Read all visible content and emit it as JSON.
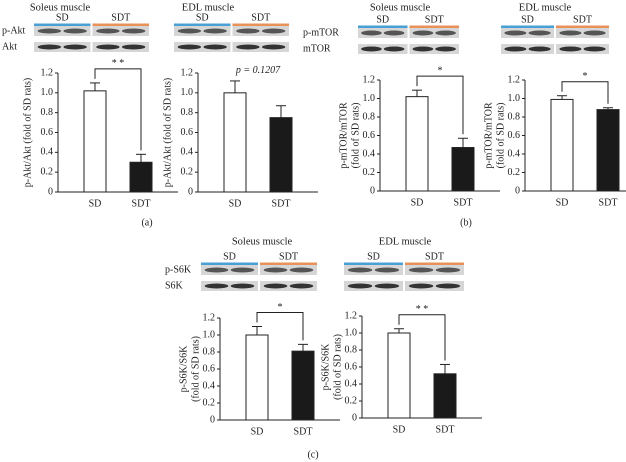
{
  "chart_data": [
    {
      "type": "bar",
      "title": "Soleus muscle",
      "blot_rows": [
        "p-Akt",
        "Akt"
      ],
      "categories": [
        "SD",
        "SDT"
      ],
      "values": [
        1.02,
        0.3
      ],
      "errors": [
        0.08,
        0.08
      ],
      "colors": [
        "#ffffff",
        "#1a1a1a"
      ],
      "ylabel": [
        "p-Akt/Akt (fold of SD rats)"
      ],
      "significance": "*   *",
      "ylim": [
        0,
        1.2
      ],
      "yticks": [
        0,
        0.2,
        0.4,
        0.6,
        0.8,
        {
          "value": 1,
          "label": "1.0"
        },
        1.2
      ]
    },
    {
      "type": "bar",
      "title": "EDL muscle",
      "categories": [
        "SD",
        "SDT"
      ],
      "values": [
        1.0,
        0.75
      ],
      "errors": [
        0.12,
        0.12
      ],
      "colors": [
        "#ffffff",
        "#1a1a1a"
      ],
      "ylabel": [
        "p-Akt/Akt (fold of SD rats)"
      ],
      "annotation": "p = 0.1207",
      "ylim": [
        0,
        1.2
      ],
      "yticks": [
        0,
        0.2,
        0.4,
        0.6,
        0.8,
        {
          "value": 1,
          "label": "1.0"
        },
        1.2
      ]
    },
    {
      "type": "bar",
      "title": "Soleus muscle",
      "blot_rows": [
        "p-mTOR",
        "mTOR"
      ],
      "categories": [
        "SD",
        "SDT"
      ],
      "values": [
        1.02,
        0.47
      ],
      "errors": [
        0.07,
        0.1
      ],
      "colors": [
        "#ffffff",
        "#1a1a1a"
      ],
      "ylabel": [
        "p-mTOR/mTOR",
        "(fold of SD rats)"
      ],
      "significance": "*",
      "ylim": [
        0,
        1.2
      ],
      "yticks": [
        0,
        0.2,
        0.4,
        0.6,
        0.8,
        {
          "value": 1,
          "label": "1.0"
        },
        1.2
      ]
    },
    {
      "type": "bar",
      "title": "EDL muscle",
      "categories": [
        "SD",
        "SDT"
      ],
      "values": [
        0.99,
        0.88
      ],
      "errors": [
        0.04,
        0.02
      ],
      "colors": [
        "#ffffff",
        "#1a1a1a"
      ],
      "ylabel": [
        "p-mTOR/mTOR",
        "(fold of SD rats)"
      ],
      "significance": "*",
      "ylim": [
        0,
        1.2
      ],
      "yticks": [
        0,
        0.2,
        0.4,
        0.6,
        0.8,
        {
          "value": 1,
          "label": "1.0"
        },
        1.2
      ]
    },
    {
      "type": "bar",
      "title": "Soleus muscle",
      "blot_rows": [
        "p-S6K",
        "S6K"
      ],
      "categories": [
        "SD",
        "SDT"
      ],
      "values": [
        1.0,
        0.81
      ],
      "errors": [
        0.1,
        0.08
      ],
      "colors": [
        "#ffffff",
        "#1a1a1a"
      ],
      "ylabel": [
        "p-S6K/S6K",
        "(fold of SD rats)"
      ],
      "significance": "*",
      "ylim": [
        0,
        1.2
      ],
      "yticks": [
        0,
        0.2,
        0.4,
        0.6,
        0.8,
        {
          "value": 1,
          "label": "1.0"
        },
        1.2
      ]
    },
    {
      "type": "bar",
      "title": "EDL muscle",
      "categories": [
        "SD",
        "SDT"
      ],
      "values": [
        1.0,
        0.52
      ],
      "errors": [
        0.05,
        0.11
      ],
      "colors": [
        "#ffffff",
        "#1a1a1a"
      ],
      "ylabel": [
        "p-S6K/S6K",
        "(fold of SD rats)"
      ],
      "significance": "*   *",
      "ylim": [
        0,
        1.2
      ],
      "yticks": [
        0,
        0.2,
        0.4,
        0.6,
        0.8,
        {
          "value": 1,
          "label": "1.0"
        },
        1.2
      ]
    }
  ],
  "panel_labels": [
    "(a)",
    "(b)",
    "(c)"
  ]
}
